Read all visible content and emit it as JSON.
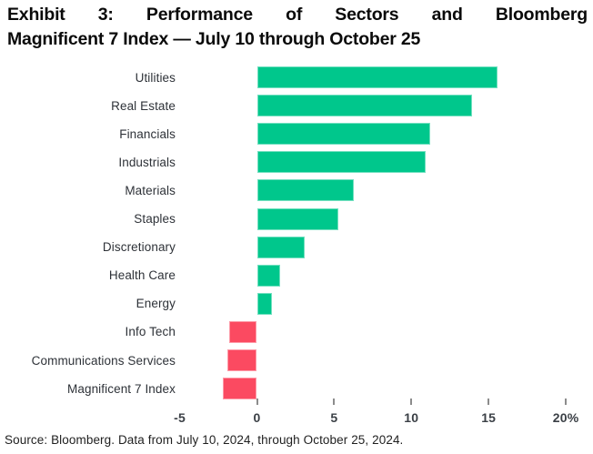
{
  "title": {
    "line1": "Exhibit 3: Performance of Sectors and Bloomberg",
    "line2": "Magnificent 7 Index — July 10 through October 25"
  },
  "source_note": "Source: Bloomberg. Data from July 10, 2024, through October 25, 2024.",
  "colors": {
    "positive_bar": "#00c78c",
    "negative_bar": "#fb4a61",
    "tick": "#8c8c8c",
    "axis_label": "#3b4046",
    "category_label": "#2e3238",
    "title_text": "#0a0a0a",
    "source_text": "#1f1f1f",
    "background": "#ffffff"
  },
  "chart_data": {
    "type": "bar",
    "orientation": "horizontal",
    "title": "Exhibit 3: Performance of Sectors and Bloomberg Magnificent 7 Index — July 10 through October 25",
    "unit": "%",
    "categories": [
      "Utilities",
      "Real Estate",
      "Financials",
      "Industrials",
      "Materials",
      "Staples",
      "Discretionary",
      "Health Care",
      "Energy",
      "Info Tech",
      "Communications Services",
      "Magnificent 7 Index"
    ],
    "values": [
      15.6,
      13.9,
      11.2,
      10.9,
      6.3,
      5.3,
      3.1,
      1.5,
      1.0,
      -1.8,
      -1.9,
      -2.2
    ],
    "xlim": [
      -5,
      20
    ],
    "x_ticks": [
      {
        "value": -5,
        "label": "-5",
        "mark": false
      },
      {
        "value": 0,
        "label": "0",
        "mark": true
      },
      {
        "value": 5,
        "label": "5",
        "mark": true
      },
      {
        "value": 10,
        "label": "10",
        "mark": true
      },
      {
        "value": 15,
        "label": "15",
        "mark": true
      },
      {
        "value": 20,
        "label": "20%",
        "mark": true
      }
    ],
    "grid": false,
    "legend": false
  }
}
